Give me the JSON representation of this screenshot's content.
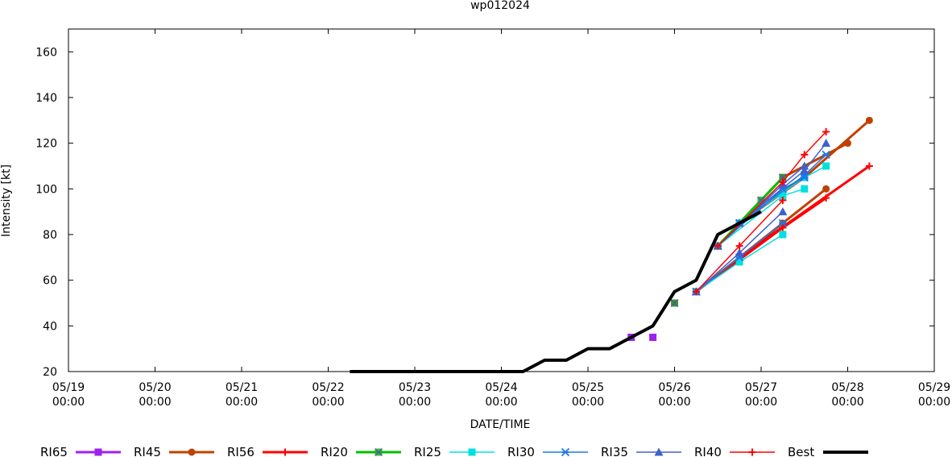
{
  "chart_data": {
    "type": "line",
    "title": "wp012024",
    "xlabel": "DATE/TIME",
    "ylabel": "Intensity [kt]",
    "x_unit": "date",
    "xlim": [
      "05/19 00:00",
      "05/29 00:00"
    ],
    "ylim": [
      20,
      170
    ],
    "x_ticks": [
      {
        "value": "05/19 00:00",
        "line1": "05/19",
        "line2": "00:00"
      },
      {
        "value": "05/20 00:00",
        "line1": "05/20",
        "line2": "00:00"
      },
      {
        "value": "05/21 00:00",
        "line1": "05/21",
        "line2": "00:00"
      },
      {
        "value": "05/22 00:00",
        "line1": "05/22",
        "line2": "00:00"
      },
      {
        "value": "05/23 00:00",
        "line1": "05/23",
        "line2": "00:00"
      },
      {
        "value": "05/24 00:00",
        "line1": "05/24",
        "line2": "00:00"
      },
      {
        "value": "05/25 00:00",
        "line1": "05/25",
        "line2": "00:00"
      },
      {
        "value": "05/26 00:00",
        "line1": "05/26",
        "line2": "00:00"
      },
      {
        "value": "05/27 00:00",
        "line1": "05/27",
        "line2": "00:00"
      },
      {
        "value": "05/28 00:00",
        "line1": "05/28",
        "line2": "00:00"
      },
      {
        "value": "05/29 00:00",
        "line1": "05/29",
        "line2": "00:00"
      }
    ],
    "y_ticks": [
      20,
      40,
      60,
      80,
      100,
      120,
      140,
      160
    ],
    "grid": false,
    "legend_position": "bottom",
    "series": [
      {
        "name": "RI65",
        "color": "#a020f0",
        "marker": "square",
        "width": 3,
        "segments": [
          [
            [
              "05/25 12:00",
              35
            ]
          ],
          [
            [
              "05/25 18:00",
              35
            ]
          ]
        ]
      },
      {
        "name": "RI45",
        "color": "#c04000",
        "marker": "circle",
        "width": 3,
        "segments": [
          [
            [
              "05/26 00:00",
              50
            ]
          ],
          [
            [
              "05/26 06:00",
              55
            ],
            [
              "05/27 06:00",
              85
            ],
            [
              "05/27 18:00",
              100
            ]
          ],
          [
            [
              "05/26 12:00",
              75
            ],
            [
              "05/27 06:00",
              105
            ],
            [
              "05/28 00:00",
              120
            ]
          ],
          [
            [
              "05/26 18:00",
              85
            ],
            [
              "05/27 12:00",
              105
            ],
            [
              "05/28 06:00",
              130
            ]
          ]
        ]
      },
      {
        "name": "RI56",
        "color": "#ff0000",
        "marker": "plus",
        "width": 3,
        "segments": [
          [
            [
              "05/26 06:00",
              55
            ],
            [
              "05/27 06:00",
              83
            ],
            [
              "05/27 18:00",
              96
            ]
          ],
          [
            [
              "05/26 18:00",
              70
            ],
            [
              "05/28 06:00",
              110
            ]
          ]
        ]
      },
      {
        "name": "RI20",
        "color": "#00c000",
        "marker": "boxx",
        "width": 3,
        "segments": [
          [
            [
              "05/26 00:00",
              50
            ]
          ],
          [
            [
              "05/26 12:00",
              75
            ],
            [
              "05/27 06:00",
              105
            ]
          ],
          [
            [
              "05/26 18:00",
              85
            ],
            [
              "05/27 00:00",
              95
            ]
          ]
        ]
      },
      {
        "name": "RI25",
        "color": "#00e0e0",
        "marker": "square",
        "width": 1.5,
        "segments": [
          [
            [
              "05/26 06:00",
              55
            ],
            [
              "05/26 18:00",
              68
            ],
            [
              "05/27 06:00",
              80
            ]
          ],
          [
            [
              "05/26 12:00",
              75
            ],
            [
              "05/27 06:00",
              97
            ],
            [
              "05/27 12:00",
              100
            ]
          ],
          [
            [
              "05/26 18:00",
              85
            ],
            [
              "05/27 12:00",
              105
            ],
            [
              "05/27 18:00",
              110
            ]
          ]
        ]
      },
      {
        "name": "RI30",
        "color": "#1e78e6",
        "marker": "star",
        "width": 1.5,
        "segments": [
          [
            [
              "05/26 06:00",
              55
            ],
            [
              "05/26 18:00",
              70
            ],
            [
              "05/27 06:00",
              85
            ]
          ],
          [
            [
              "05/26 12:00",
              75
            ],
            [
              "05/27 06:00",
              100
            ],
            [
              "05/27 12:00",
              105
            ]
          ],
          [
            [
              "05/26 18:00",
              85
            ],
            [
              "05/27 12:00",
              106
            ],
            [
              "05/27 18:00",
              115
            ]
          ]
        ]
      },
      {
        "name": "RI35",
        "color": "#4060d0",
        "marker": "triangle",
        "width": 1.5,
        "segments": [
          [
            [
              "05/26 06:00",
              55
            ],
            [
              "05/26 18:00",
              72
            ],
            [
              "05/27 06:00",
              90
            ]
          ],
          [
            [
              "05/26 12:00",
              75
            ],
            [
              "05/27 06:00",
              102
            ],
            [
              "05/27 12:00",
              110
            ]
          ],
          [
            [
              "05/26 18:00",
              85
            ],
            [
              "05/27 12:00",
              108
            ],
            [
              "05/27 18:00",
              120
            ]
          ]
        ]
      },
      {
        "name": "RI40",
        "color": "#ff0000",
        "marker": "plus",
        "width": 1.5,
        "segments": [
          [
            [
              "05/26 06:00",
              55
            ],
            [
              "05/26 18:00",
              75
            ],
            [
              "05/27 06:00",
              95
            ]
          ],
          [
            [
              "05/26 12:00",
              75
            ],
            [
              "05/27 06:00",
              103
            ],
            [
              "05/27 12:00",
              115
            ],
            [
              "05/27 18:00",
              125
            ]
          ]
        ]
      },
      {
        "name": "Best",
        "color": "#000000",
        "marker": "none",
        "width": 4,
        "segments": [
          [
            [
              "05/22 06:00",
              20
            ],
            [
              "05/24 06:00",
              20
            ],
            [
              "05/24 12:00",
              25
            ],
            [
              "05/24 18:00",
              25
            ],
            [
              "05/25 00:00",
              30
            ],
            [
              "05/25 06:00",
              30
            ],
            [
              "05/25 12:00",
              35
            ],
            [
              "05/25 18:00",
              40
            ],
            [
              "05/26 00:00",
              55
            ],
            [
              "05/26 06:00",
              60
            ],
            [
              "05/26 12:00",
              80
            ],
            [
              "05/26 18:00",
              85
            ],
            [
              "05/27 00:00",
              90
            ]
          ]
        ]
      }
    ]
  }
}
